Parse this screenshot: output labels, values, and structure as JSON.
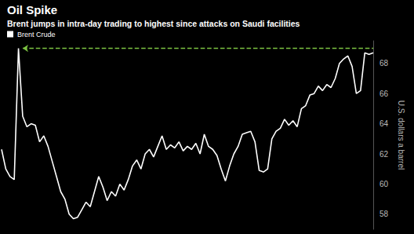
{
  "chart_data": {
    "type": "line",
    "title": "Oil Spike",
    "subtitle": "Brent jumps in intra-day trading to highest since attacks on Saudi facilities",
    "y_label": "U.S. dollars a barrel",
    "categories": [
      null,
      null,
      null,
      null,
      null,
      null,
      null,
      null,
      null,
      null,
      null,
      null,
      null,
      null,
      null,
      null,
      null,
      null,
      null,
      null,
      null,
      null,
      null,
      null,
      null,
      null,
      null,
      null,
      null,
      null,
      null,
      null,
      null,
      null,
      null,
      null,
      null,
      null,
      null,
      null,
      null,
      null,
      null,
      null,
      null,
      null,
      null,
      null,
      null,
      null,
      null,
      null,
      null,
      null,
      null,
      null,
      null,
      null,
      null,
      null,
      null,
      null,
      null,
      null,
      null,
      null,
      null,
      null,
      null,
      null,
      null,
      null,
      null,
      null,
      null,
      null,
      null,
      null,
      null,
      null,
      null,
      null,
      null,
      null,
      null,
      null,
      null,
      null,
      null
    ],
    "series": [
      {
        "name": "Brent Crude",
        "color": "#ffffff",
        "values": [
          62.3,
          61.0,
          60.5,
          60.3,
          69.0,
          64.5,
          63.8,
          64.0,
          63.9,
          62.8,
          63.2,
          62.5,
          61.5,
          60.5,
          59.5,
          59.0,
          58.0,
          57.7,
          57.8,
          58.3,
          58.8,
          58.5,
          59.5,
          60.5,
          59.8,
          58.9,
          59.5,
          59.2,
          60.0,
          59.6,
          60.3,
          61.2,
          61.6,
          61.0,
          62.0,
          62.3,
          61.8,
          62.5,
          63.2,
          62.3,
          62.6,
          62.4,
          62.8,
          62.2,
          62.5,
          62.3,
          62.7,
          62.0,
          63.3,
          62.5,
          62.3,
          61.9,
          61.0,
          60.2,
          61.2,
          62.0,
          62.5,
          63.3,
          63.4,
          63.5,
          62.8,
          60.9,
          60.8,
          61.0,
          63.0,
          63.5,
          63.7,
          64.3,
          63.9,
          64.2,
          63.8,
          65.0,
          65.2,
          65.9,
          66.0,
          66.5,
          66.2,
          66.6,
          66.4,
          67.0,
          68.0,
          68.3,
          68.5,
          67.8,
          66.0,
          66.2,
          68.7,
          68.6,
          68.7
        ]
      }
    ],
    "reference_line": 69.0,
    "ylim": [
      57,
      69.5
    ],
    "yticks": [
      58,
      60,
      62,
      64,
      66,
      68
    ],
    "grid": false,
    "legend": "top-left",
    "tick_labels": "y"
  }
}
